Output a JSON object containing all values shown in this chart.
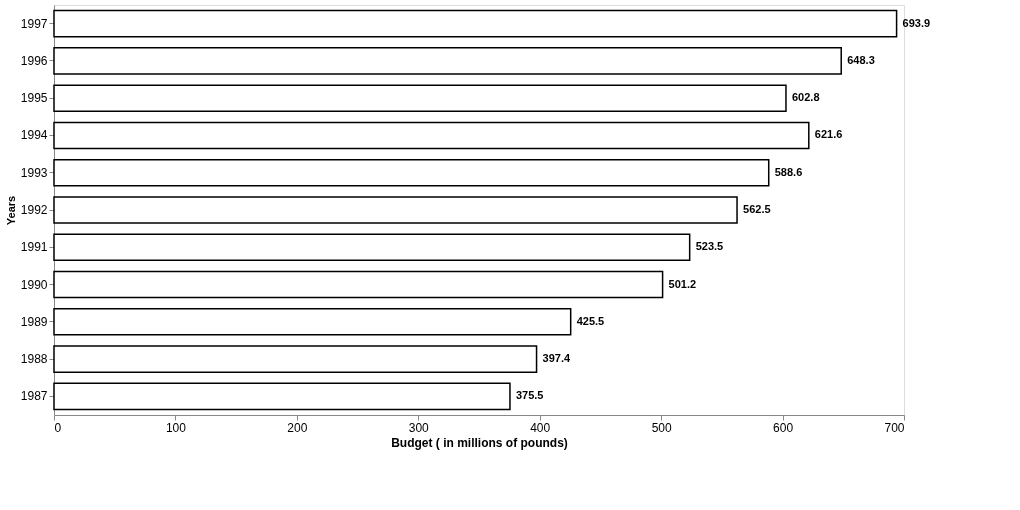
{
  "chart_data": {
    "type": "bar",
    "orientation": "horizontal",
    "xlabel": "Budget ( in millions of pounds)",
    "ylabel": "Years",
    "categories": [
      "1997",
      "1996",
      "1995",
      "1994",
      "1993",
      "1992",
      "1991",
      "1990",
      "1989",
      "1988",
      "1987"
    ],
    "values": [
      693.9,
      648.3,
      602.8,
      621.6,
      588.6,
      562.5,
      523.5,
      501.2,
      425.5,
      397.4,
      375.5
    ],
    "color": "#ffffff",
    "xlim": [
      0,
      700
    ],
    "xticks": [
      0,
      100,
      200,
      300,
      400,
      500,
      600,
      700
    ],
    "grid": false,
    "data_labels": true
  }
}
